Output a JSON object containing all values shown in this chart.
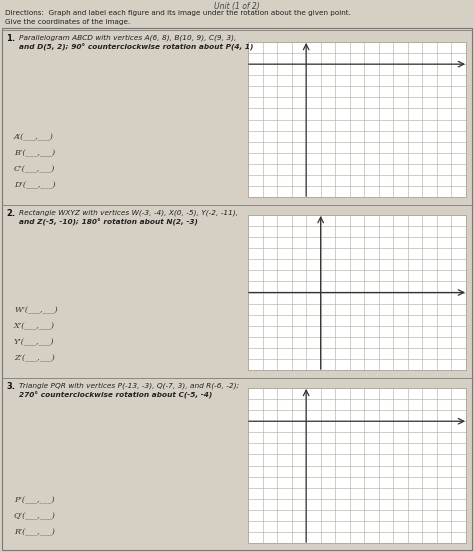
{
  "header_top": "Unit (1 of 2)",
  "title_line1": "Directions:  Graph and label each figure and its image under the rotation about the given point.",
  "title_line2": "Give the coordinates of the image.",
  "bg_color": "#d6d0c4",
  "grid_color": "#b0a898",
  "axis_color": "#333333",
  "section_line_color": "#888880",
  "problems": [
    {
      "number": "1.",
      "text_line1": "Parallelogram ABCD with vertices A(6, 8), B(10, 9), C(9, 3),",
      "text_line2": "and D(5, 2); 90° counterclockwise rotation about P(4, 1)",
      "labels": [
        "A’(___,___)",
        "B’(___,___)",
        "C’(___,___)",
        "D’(___,___)"
      ],
      "n_cols": 15,
      "n_rows": 14,
      "axis_col": 4,
      "axis_row": 2
    },
    {
      "number": "2.",
      "text_line1": "Rectangle WXYZ with vertices W(-3, -4), X(0, -5), Y(-2, -11),",
      "text_line2": "and Z(-5, -10); 180° rotation about N(2, -3)",
      "labels": [
        "W’(___,___)",
        "X’(___,___)",
        "Y’(___,___)",
        "Z’(___,___)"
      ],
      "n_cols": 15,
      "n_rows": 14,
      "axis_col": 5,
      "axis_row": 7
    },
    {
      "number": "3.",
      "text_line1": "Triangle PQR with vertices P(-13, -3), Q(-7, 3), and R(-6, -2);",
      "text_line2": "270° counterclockwise rotation about C(-5, -4)",
      "labels": [
        "P’(___,___)",
        "Q’(___,___)",
        "R’(___,___)"
      ],
      "n_cols": 15,
      "n_rows": 14,
      "axis_col": 4,
      "axis_row": 3
    }
  ]
}
